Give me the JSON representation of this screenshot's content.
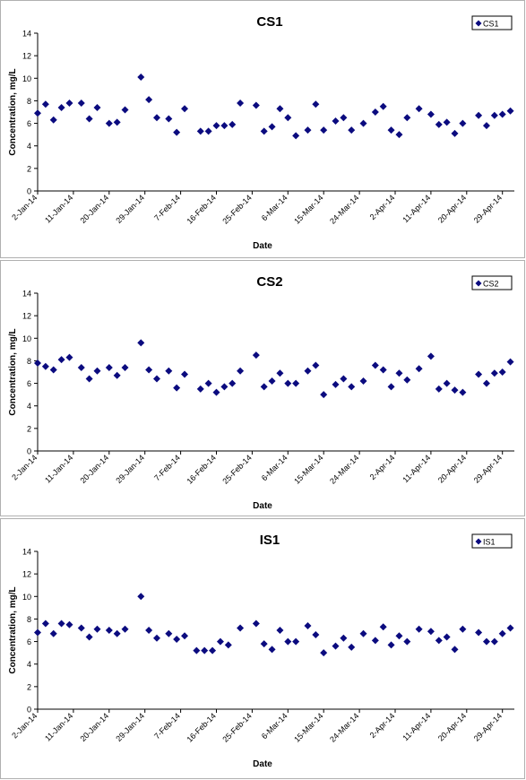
{
  "chart_data": [
    {
      "type": "scatter",
      "title": "CS1",
      "xlabel": "Date",
      "ylabel": "Concentration, mg/L",
      "xlim": [
        "2014-01-02",
        "2014-05-02"
      ],
      "ylim": [
        0,
        14
      ],
      "yticks": [
        0,
        2,
        4,
        6,
        8,
        10,
        12,
        14
      ],
      "xticks": [
        "2-Jan-14",
        "11-Jan-14",
        "20-Jan-14",
        "29-Jan-14",
        "7-Feb-14",
        "16-Feb-14",
        "25-Feb-14",
        "6-Mar-14",
        "15-Mar-14",
        "24-Mar-14",
        "2-Apr-14",
        "11-Apr-14",
        "20-Apr-14",
        "29-Apr-14"
      ],
      "grid": false,
      "legend_position": "top-right",
      "marker": "diamond",
      "color": "#0b0b7f",
      "series": [
        {
          "name": "CS1",
          "x": [
            "2014-01-02",
            "2014-01-04",
            "2014-01-06",
            "2014-01-08",
            "2014-01-10",
            "2014-01-13",
            "2014-01-15",
            "2014-01-17",
            "2014-01-20",
            "2014-01-22",
            "2014-01-24",
            "2014-01-28",
            "2014-01-30",
            "2014-02-01",
            "2014-02-04",
            "2014-02-06",
            "2014-02-08",
            "2014-02-12",
            "2014-02-14",
            "2014-02-16",
            "2014-02-18",
            "2014-02-20",
            "2014-02-22",
            "2014-02-26",
            "2014-02-28",
            "2014-03-02",
            "2014-03-04",
            "2014-03-06",
            "2014-03-08",
            "2014-03-11",
            "2014-03-13",
            "2014-03-15",
            "2014-03-18",
            "2014-03-20",
            "2014-03-22",
            "2014-03-25",
            "2014-03-28",
            "2014-03-30",
            "2014-04-01",
            "2014-04-03",
            "2014-04-05",
            "2014-04-08",
            "2014-04-11",
            "2014-04-13",
            "2014-04-15",
            "2014-04-17",
            "2014-04-19",
            "2014-04-23",
            "2014-04-25",
            "2014-04-27",
            "2014-04-29",
            "2014-05-01"
          ],
          "y": [
            6.9,
            7.7,
            6.3,
            7.4,
            7.8,
            7.8,
            6.4,
            7.4,
            6.0,
            6.1,
            7.2,
            10.1,
            8.1,
            6.5,
            6.4,
            5.2,
            7.3,
            5.3,
            5.3,
            5.8,
            5.8,
            5.9,
            7.8,
            7.6,
            5.3,
            5.7,
            7.3,
            6.5,
            4.9,
            5.4,
            7.7,
            5.4,
            6.2,
            6.5,
            5.4,
            6.0,
            7.0,
            7.5,
            5.4,
            5.0,
            6.5,
            7.3,
            6.8,
            5.9,
            6.1,
            5.1,
            6.0,
            6.7,
            5.8,
            6.7,
            6.8,
            7.1
          ]
        }
      ]
    },
    {
      "type": "scatter",
      "title": "CS2",
      "xlabel": "Date",
      "ylabel": "Concentration, mg/L",
      "xlim": [
        "2014-01-02",
        "2014-05-02"
      ],
      "ylim": [
        0,
        14
      ],
      "yticks": [
        0,
        2,
        4,
        6,
        8,
        10,
        12,
        14
      ],
      "xticks": [
        "2-Jan-14",
        "11-Jan-14",
        "20-Jan-14",
        "29-Jan-14",
        "7-Feb-14",
        "16-Feb-14",
        "25-Feb-14",
        "6-Mar-14",
        "15-Mar-14",
        "24-Mar-14",
        "2-Apr-14",
        "11-Apr-14",
        "20-Apr-14",
        "29-Apr-14"
      ],
      "grid": false,
      "legend_position": "top-right",
      "marker": "diamond",
      "color": "#0b0b7f",
      "series": [
        {
          "name": "CS2",
          "x": [
            "2014-01-02",
            "2014-01-04",
            "2014-01-06",
            "2014-01-08",
            "2014-01-10",
            "2014-01-13",
            "2014-01-15",
            "2014-01-17",
            "2014-01-20",
            "2014-01-22",
            "2014-01-24",
            "2014-01-28",
            "2014-01-30",
            "2014-02-01",
            "2014-02-04",
            "2014-02-06",
            "2014-02-08",
            "2014-02-12",
            "2014-02-14",
            "2014-02-16",
            "2014-02-18",
            "2014-02-20",
            "2014-02-22",
            "2014-02-26",
            "2014-02-28",
            "2014-03-02",
            "2014-03-04",
            "2014-03-06",
            "2014-03-08",
            "2014-03-11",
            "2014-03-13",
            "2014-03-15",
            "2014-03-18",
            "2014-03-20",
            "2014-03-22",
            "2014-03-25",
            "2014-03-28",
            "2014-03-30",
            "2014-04-01",
            "2014-04-03",
            "2014-04-05",
            "2014-04-08",
            "2014-04-11",
            "2014-04-13",
            "2014-04-15",
            "2014-04-17",
            "2014-04-19",
            "2014-04-23",
            "2014-04-25",
            "2014-04-27",
            "2014-04-29",
            "2014-05-01"
          ],
          "y": [
            7.8,
            7.5,
            7.2,
            8.1,
            8.3,
            7.4,
            6.4,
            7.1,
            7.4,
            6.7,
            7.4,
            9.6,
            7.2,
            6.4,
            7.1,
            5.6,
            6.8,
            5.5,
            6.0,
            5.2,
            5.7,
            6.0,
            7.1,
            8.5,
            5.7,
            6.2,
            6.9,
            6.0,
            6.0,
            7.1,
            7.6,
            5.0,
            5.9,
            6.4,
            5.7,
            6.2,
            7.6,
            7.2,
            5.7,
            6.9,
            6.3,
            7.3,
            8.4,
            5.5,
            6.0,
            5.4,
            5.2,
            6.8,
            6.0,
            6.9,
            7.0,
            7.9
          ]
        }
      ]
    },
    {
      "type": "scatter",
      "title": "IS1",
      "xlabel": "Date",
      "ylabel": "Concentration, mg/L",
      "xlim": [
        "2014-01-02",
        "2014-05-02"
      ],
      "ylim": [
        0,
        14
      ],
      "yticks": [
        0,
        2,
        4,
        6,
        8,
        10,
        12,
        14
      ],
      "xticks": [
        "2-Jan-14",
        "11-Jan-14",
        "20-Jan-14",
        "29-Jan-14",
        "7-Feb-14",
        "16-Feb-14",
        "25-Feb-14",
        "6-Mar-14",
        "15-Mar-14",
        "24-Mar-14",
        "2-Apr-14",
        "11-Apr-14",
        "20-Apr-14",
        "29-Apr-14"
      ],
      "grid": false,
      "legend_position": "top-right",
      "marker": "diamond",
      "color": "#0b0b7f",
      "series": [
        {
          "name": "IS1",
          "x": [
            "2014-01-02",
            "2014-01-04",
            "2014-01-06",
            "2014-01-08",
            "2014-01-10",
            "2014-01-13",
            "2014-01-15",
            "2014-01-17",
            "2014-01-20",
            "2014-01-22",
            "2014-01-24",
            "2014-01-28",
            "2014-01-30",
            "2014-02-01",
            "2014-02-04",
            "2014-02-06",
            "2014-02-08",
            "2014-02-11",
            "2014-02-13",
            "2014-02-15",
            "2014-02-17",
            "2014-02-19",
            "2014-02-22",
            "2014-02-26",
            "2014-02-28",
            "2014-03-02",
            "2014-03-04",
            "2014-03-06",
            "2014-03-08",
            "2014-03-11",
            "2014-03-13",
            "2014-03-15",
            "2014-03-18",
            "2014-03-20",
            "2014-03-22",
            "2014-03-25",
            "2014-03-28",
            "2014-03-30",
            "2014-04-01",
            "2014-04-03",
            "2014-04-05",
            "2014-04-08",
            "2014-04-11",
            "2014-04-13",
            "2014-04-15",
            "2014-04-17",
            "2014-04-19",
            "2014-04-23",
            "2014-04-25",
            "2014-04-27",
            "2014-04-29",
            "2014-05-01"
          ],
          "y": [
            6.8,
            7.6,
            6.7,
            7.6,
            7.5,
            7.2,
            6.4,
            7.1,
            7.0,
            6.7,
            7.1,
            10.0,
            7.0,
            6.3,
            6.7,
            6.2,
            6.5,
            5.2,
            5.2,
            5.2,
            6.0,
            5.7,
            7.2,
            7.6,
            5.8,
            5.3,
            7.0,
            6.0,
            6.0,
            7.4,
            6.6,
            5.0,
            5.6,
            6.3,
            5.5,
            6.7,
            6.1,
            7.3,
            5.7,
            6.5,
            6.0,
            7.1,
            6.9,
            6.1,
            6.4,
            5.3,
            7.1,
            6.8,
            6.0,
            6.0,
            6.7,
            7.2
          ]
        }
      ]
    }
  ]
}
